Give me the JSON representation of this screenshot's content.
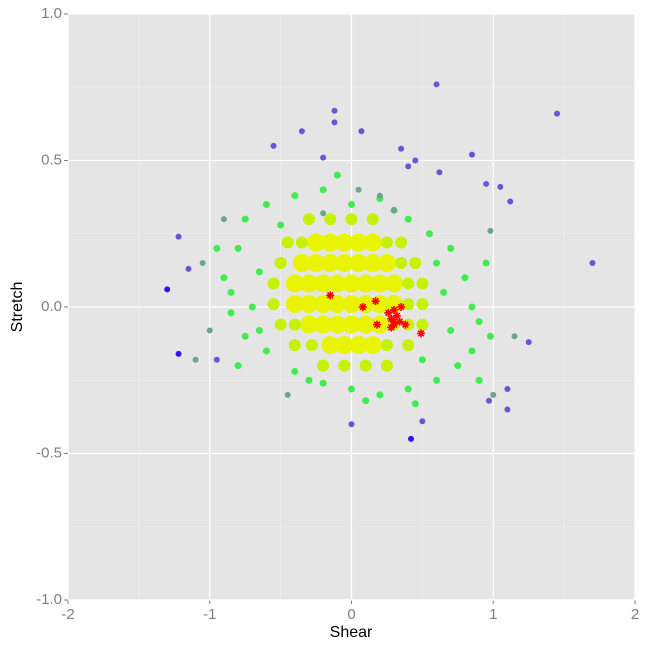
{
  "chart_data": {
    "type": "scatter",
    "x_label": "Shear",
    "y_label": "Stretch",
    "xlim": [
      -2,
      2
    ],
    "ylim": [
      -1,
      1
    ],
    "xticks": [
      -2,
      -1,
      0,
      1,
      2
    ],
    "yticks": [
      {
        "value": -1,
        "label": "-1.0"
      },
      {
        "value": -0.5,
        "label": "-0.5"
      },
      {
        "value": 0,
        "label": "0.0"
      },
      {
        "value": 0.5,
        "label": "0.5"
      },
      {
        "value": 1,
        "label": "1.0"
      }
    ],
    "x_minor": [
      -1.5,
      -0.5,
      0.5,
      1.5
    ],
    "y_minor": [
      -0.75,
      -0.25,
      0.25,
      0.75
    ],
    "grid": true,
    "background": "#e5e5e5",
    "series": [
      {
        "color": "#e8f400",
        "marker": "circle",
        "marker_size": 9,
        "x": [
          -0.25,
          -0.15,
          -0.05,
          0.05,
          0.15,
          -0.35,
          -0.25,
          -0.15,
          -0.05,
          0.05,
          0.15,
          0.25,
          -0.4,
          -0.3,
          -0.2,
          -0.1,
          0,
          0.1,
          0.2,
          0.3,
          -0.4,
          -0.3,
          -0.2,
          -0.1,
          0,
          0.1,
          0.2,
          0.3,
          -0.3,
          -0.2,
          -0.1,
          0,
          0.1,
          0.2,
          -0.15,
          -0.05,
          0.05,
          0.15
        ],
        "y": [
          0.22,
          0.22,
          0.22,
          0.22,
          0.22,
          0.15,
          0.15,
          0.15,
          0.15,
          0.15,
          0.15,
          0.15,
          0.08,
          0.08,
          0.08,
          0.08,
          0.08,
          0.08,
          0.08,
          0.08,
          0.01,
          0.01,
          0.01,
          0.01,
          0.01,
          0.01,
          0.01,
          0.01,
          -0.06,
          -0.06,
          -0.06,
          -0.06,
          -0.06,
          -0.06,
          -0.13,
          -0.13,
          -0.13,
          -0.13
        ]
      },
      {
        "color": "#c4f200",
        "marker": "circle",
        "marker_size": 6,
        "x": [
          -0.3,
          -0.15,
          0,
          0.15,
          -0.45,
          -0.35,
          0.25,
          0.35,
          -0.5,
          0.35,
          0.45,
          -0.55,
          0.4,
          0.5,
          -0.55,
          0.4,
          0.5,
          -0.5,
          -0.4,
          0.3,
          0.4,
          0.5,
          -0.4,
          -0.28,
          0.25,
          0.4,
          -0.2,
          -0.05,
          0.1,
          0.25
        ],
        "y": [
          0.3,
          0.3,
          0.3,
          0.3,
          0.22,
          0.22,
          0.22,
          0.22,
          0.15,
          0.15,
          0.15,
          0.08,
          0.08,
          0.08,
          0.01,
          0.01,
          0.01,
          -0.06,
          -0.06,
          -0.06,
          -0.06,
          -0.06,
          -0.13,
          -0.13,
          -0.13,
          -0.13,
          -0.2,
          -0.2,
          -0.2,
          -0.2
        ]
      },
      {
        "color": "#40ec50",
        "marker": "circle",
        "marker_size": 3.5,
        "x": [
          -0.85,
          -0.9,
          -0.8,
          -0.75,
          -0.6,
          -0.4,
          -0.2,
          0,
          0.2,
          0.4,
          0.55,
          0.7,
          0.8,
          0.85,
          0.9,
          0.85,
          0.75,
          0.6,
          0.4,
          0.2,
          0,
          -0.2,
          -0.4,
          -0.6,
          -0.75,
          -0.85,
          -0.7,
          -0.65,
          -0.65,
          0.65,
          0.7,
          0.6,
          -0.5,
          0.3,
          0.5,
          -0.3,
          0.1,
          0.95,
          0.98,
          -0.95,
          -0.8,
          0.45,
          -0.1,
          0.9
        ],
        "y": [
          0.05,
          0.1,
          0.2,
          0.3,
          0.35,
          0.38,
          0.4,
          0.35,
          0.37,
          0.3,
          0.25,
          0.2,
          0.1,
          0,
          -0.05,
          -0.15,
          -0.2,
          -0.25,
          -0.28,
          -0.3,
          -0.28,
          -0.26,
          -0.22,
          -0.15,
          -0.1,
          -0.02,
          0,
          0.12,
          -0.08,
          0.05,
          -0.08,
          0.15,
          0.28,
          0.33,
          -0.18,
          -0.25,
          -0.32,
          0.15,
          -0.1,
          0.2,
          -0.2,
          -0.33,
          0.45,
          -0.25
        ]
      },
      {
        "color": "#6aa58c",
        "marker": "circle",
        "marker_size": 3,
        "x": [
          -1.0,
          -1.05,
          -1.1,
          -0.9,
          0.05,
          0.2,
          0.3,
          0.98,
          1.0,
          -0.2,
          -0.45,
          1.15
        ],
        "y": [
          -0.08,
          0.15,
          -0.18,
          0.3,
          0.4,
          0.38,
          0.33,
          0.26,
          -0.3,
          0.32,
          -0.3,
          -0.1
        ]
      },
      {
        "color": "#6a55d5",
        "marker": "circle",
        "marker_size": 3,
        "x": [
          0.6,
          0.85,
          -0.35,
          -0.12,
          -0.12,
          0.07,
          -0.55,
          0.35,
          0.4,
          0.45,
          0.62,
          0.95,
          1.05,
          1.12,
          1.45,
          1.7,
          -1.22,
          -1.15,
          -0.95,
          1.25,
          1.1,
          1.1,
          0.97,
          0.5,
          0.0,
          -0.2
        ],
        "y": [
          0.76,
          0.52,
          0.6,
          0.67,
          0.63,
          0.6,
          0.55,
          0.54,
          0.48,
          0.5,
          0.46,
          0.42,
          0.41,
          0.36,
          0.66,
          0.15,
          0.24,
          0.13,
          -0.18,
          -0.12,
          -0.28,
          -0.35,
          -0.32,
          -0.39,
          -0.4,
          0.51
        ]
      },
      {
        "color": "#3311ee",
        "marker": "circle",
        "marker_size": 3,
        "x": [
          -1.3,
          -1.22,
          0.42
        ],
        "y": [
          0.06,
          -0.16,
          -0.45
        ]
      },
      {
        "color": "#ff0000",
        "marker": "star",
        "marker_size": 4,
        "x": [
          -0.15,
          0.08,
          0.17,
          0.18,
          0.26,
          0.28,
          0.3,
          0.32,
          0.35,
          0.3,
          0.28,
          0.34,
          0.38,
          0.49,
          0.3
        ],
        "y": [
          0.04,
          0,
          0.02,
          -0.06,
          -0.02,
          -0.04,
          -0.05,
          -0.03,
          0,
          -0.06,
          -0.07,
          -0.05,
          -0.06,
          -0.09,
          -0.01
        ]
      }
    ]
  }
}
